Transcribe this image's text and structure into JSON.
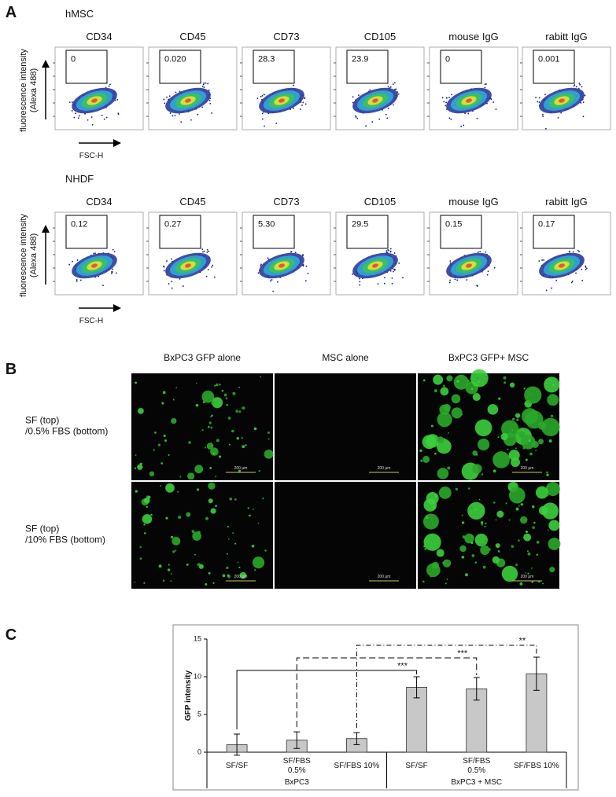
{
  "panel_a": {
    "label": "A",
    "y_axis_label": "fluorescence intensity\n(Alexa 488)",
    "x_axis_label": "FSC-H",
    "rows": [
      {
        "name": "hMSC",
        "columns": [
          "CD34",
          "CD45",
          "CD73",
          "CD105",
          "mouse IgG",
          "rabitt IgG"
        ],
        "gates": [
          "0",
          "0.020",
          "28.3",
          "23.9",
          "0",
          "0.001"
        ]
      },
      {
        "name": "NHDF",
        "columns": [
          "CD34",
          "CD45",
          "CD73",
          "CD105",
          "mouse IgG",
          "rabitt IgG"
        ],
        "gates": [
          "0.12",
          "0.27",
          "5.30",
          "29.5",
          "0.15",
          "0.17"
        ]
      }
    ]
  },
  "panel_b": {
    "label": "B",
    "columns": [
      "BxPC3 GFP alone",
      "MSC alone",
      "BxPC3 GFP+ MSC"
    ],
    "rows": [
      "SF (top)\n/0.5% FBS (bottom)",
      "SF (top)\n/10% FBS (bottom)"
    ],
    "scale_bar": "200 μm"
  },
  "panel_c": {
    "label": "C"
  },
  "chart_data": {
    "type": "bar",
    "y_label": "GFP intensity",
    "categories": [
      "SF/SF",
      "SF/FBS\n0.5%",
      "SF/FBS 10%",
      "SF/SF",
      "SF/FBS\n0.5%",
      "SF/FBS 10%"
    ],
    "groups": [
      "BxPC3",
      "BxPC3 + MSC"
    ],
    "values": [
      1.0,
      1.6,
      1.8,
      8.6,
      8.4,
      10.4
    ],
    "errors": [
      1.4,
      1.1,
      0.8,
      1.4,
      1.5,
      2.2
    ],
    "color": "#c8c8c8",
    "ylim": [
      0,
      15
    ],
    "yticks": [
      0,
      5,
      10,
      15
    ],
    "significance": [
      {
        "from": 0,
        "to": 3,
        "label": "***",
        "style": "solid"
      },
      {
        "from": 1,
        "to": 4,
        "label": "***",
        "style": "dashed"
      },
      {
        "from": 2,
        "to": 5,
        "label": "**",
        "style": "dashdot"
      }
    ]
  }
}
